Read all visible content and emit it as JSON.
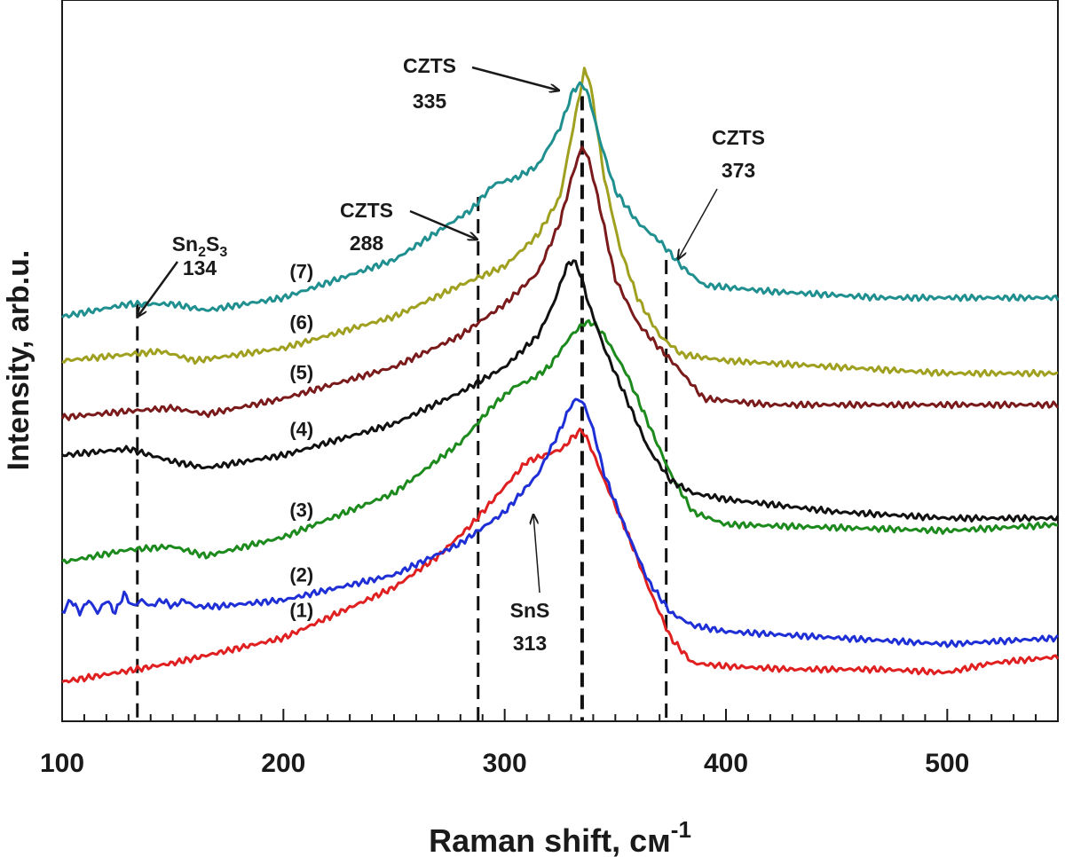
{
  "chart_data": {
    "type": "line",
    "title": "",
    "xlabel": "Raman shift, см",
    "xlabel_superscript": "-1",
    "ylabel": "Intensity, arb.u.",
    "xlim": [
      100,
      550
    ],
    "xticks": [
      100,
      200,
      300,
      400,
      500
    ],
    "yticks_shown": false,
    "grid": false,
    "legend": "none",
    "series": [
      {
        "name": "(1)",
        "color": "#e02020",
        "x": [
          100,
          150,
          200,
          250,
          270,
          285,
          300,
          310,
          318,
          326,
          331,
          335,
          338,
          345,
          355,
          365,
          375,
          385,
          400,
          430,
          470,
          500,
          520,
          550
        ],
        "y": [
          0.03,
          0.06,
          0.1,
          0.18,
          0.23,
          0.28,
          0.34,
          0.38,
          0.39,
          0.4,
          0.42,
          0.43,
          0.41,
          0.35,
          0.27,
          0.18,
          0.1,
          0.06,
          0.055,
          0.05,
          0.05,
          0.045,
          0.06,
          0.07
        ]
      },
      {
        "name": "(2)",
        "color": "#1f2fd6",
        "x": [
          100,
          104,
          108,
          112,
          116,
          120,
          124,
          128,
          132,
          136,
          140,
          145,
          150,
          155,
          160,
          170,
          200,
          250,
          280,
          300,
          315,
          325,
          330,
          333,
          336,
          340,
          345,
          355,
          365,
          375,
          385,
          400,
          450,
          500,
          550
        ],
        "y": [
          0.14,
          0.16,
          0.14,
          0.16,
          0.14,
          0.16,
          0.14,
          0.17,
          0.15,
          0.16,
          0.15,
          0.16,
          0.15,
          0.16,
          0.15,
          0.15,
          0.16,
          0.2,
          0.25,
          0.3,
          0.36,
          0.43,
          0.47,
          0.48,
          0.47,
          0.43,
          0.36,
          0.27,
          0.19,
          0.14,
          0.12,
          0.11,
          0.1,
          0.09,
          0.1
        ]
      },
      {
        "name": "(3)",
        "color": "#1c8a1c",
        "x": [
          100,
          130,
          150,
          165,
          200,
          250,
          280,
          295,
          305,
          312,
          320,
          330,
          336,
          340,
          345,
          355,
          365,
          375,
          385,
          400,
          450,
          500,
          550
        ],
        "y": [
          0.22,
          0.24,
          0.245,
          0.23,
          0.26,
          0.33,
          0.41,
          0.47,
          0.5,
          0.51,
          0.53,
          0.58,
          0.6,
          0.6,
          0.58,
          0.52,
          0.44,
          0.36,
          0.3,
          0.28,
          0.275,
          0.27,
          0.28
        ]
      },
      {
        "name": "(4)",
        "color": "#111111",
        "x": [
          100,
          130,
          150,
          165,
          200,
          250,
          280,
          300,
          315,
          322,
          328,
          331,
          334,
          338,
          345,
          355,
          365,
          375,
          385,
          400,
          450,
          500,
          550
        ],
        "y": [
          0.39,
          0.4,
          0.38,
          0.37,
          0.39,
          0.44,
          0.49,
          0.53,
          0.58,
          0.63,
          0.69,
          0.7,
          0.68,
          0.63,
          0.56,
          0.48,
          0.4,
          0.35,
          0.33,
          0.32,
          0.3,
          0.29,
          0.29
        ]
      },
      {
        "name": "(5)",
        "color": "#7a1a1a",
        "x": [
          100,
          130,
          150,
          165,
          200,
          250,
          280,
          300,
          315,
          325,
          331,
          335,
          338,
          342,
          350,
          360,
          370,
          378,
          390,
          420,
          470,
          500,
          550
        ],
        "y": [
          0.45,
          0.46,
          0.465,
          0.455,
          0.48,
          0.53,
          0.58,
          0.63,
          0.68,
          0.76,
          0.84,
          0.88,
          0.86,
          0.8,
          0.67,
          0.6,
          0.56,
          0.53,
          0.48,
          0.47,
          0.47,
          0.47,
          0.47
        ]
      },
      {
        "name": "(6)",
        "color": "#a0a020",
        "x": [
          100,
          130,
          145,
          160,
          200,
          250,
          280,
          300,
          315,
          325,
          332,
          336,
          338,
          340,
          345,
          352,
          360,
          370,
          380,
          400,
          450,
          500,
          550
        ],
        "y": [
          0.54,
          0.55,
          0.555,
          0.54,
          0.56,
          0.61,
          0.66,
          0.69,
          0.74,
          0.8,
          0.93,
          1.0,
          0.99,
          0.95,
          0.83,
          0.72,
          0.64,
          0.58,
          0.55,
          0.54,
          0.53,
          0.52,
          0.52
        ]
      },
      {
        "name": "(7)",
        "color": "#1f8f8f",
        "x": [
          100,
          130,
          150,
          165,
          200,
          250,
          285,
          295,
          305,
          315,
          325,
          331,
          335,
          338,
          343,
          350,
          360,
          370,
          380,
          390,
          420,
          470,
          500,
          550
        ],
        "y": [
          0.61,
          0.63,
          0.63,
          0.62,
          0.64,
          0.7,
          0.78,
          0.82,
          0.83,
          0.85,
          0.91,
          0.97,
          0.98,
          0.96,
          0.89,
          0.81,
          0.76,
          0.73,
          0.69,
          0.66,
          0.65,
          0.64,
          0.64,
          0.64
        ]
      }
    ],
    "reference_lines_x": [
      134,
      288,
      335,
      373
    ],
    "annotations": [
      {
        "line1": "Sn",
        "sub1": "2",
        "mid": "S",
        "sub2": "3",
        "line2": "134",
        "target_x": 134
      },
      {
        "line1": "CZTS",
        "line2": "288",
        "target_x": 288
      },
      {
        "line1": "CZTS",
        "line2": "335",
        "target_x": 335
      },
      {
        "line1": "CZTS",
        "line2": "373",
        "target_x": 373
      },
      {
        "line1": "SnS",
        "line2": "313",
        "target_x": 313
      }
    ]
  }
}
